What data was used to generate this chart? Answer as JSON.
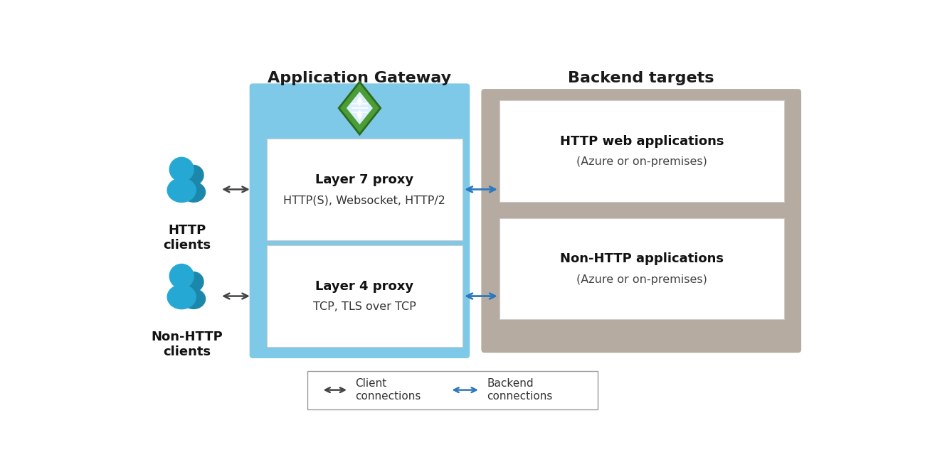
{
  "title_gateway": "Application Gateway",
  "title_backend": "Backend targets",
  "layer7_title": "Layer 7 proxy",
  "layer7_sub": "HTTP(S), Websocket, HTTP/2",
  "layer4_title": "Layer 4 proxy",
  "layer4_sub": "TCP, TLS over TCP",
  "http_web_title": "HTTP web applications",
  "http_web_sub": "(Azure or on-premises)",
  "non_http_title": "Non-HTTP applications",
  "non_http_sub": "(Azure or on-premises)",
  "http_clients_label": "HTTP\nclients",
  "non_http_clients_label": "Non-HTTP\nclients",
  "legend_client": "Client\nconnections",
  "legend_backend": "Backend\nconnections",
  "bg_color": "#ffffff",
  "gateway_box_color": "#7ec8e8",
  "backend_box_color": "#b5aba0",
  "inner_box_color": "#ffffff",
  "inner_box_edge": "#cccccc",
  "legend_box_color": "#ffffff",
  "legend_box_edge": "#999999",
  "black_arrow_color": "#444444",
  "blue_arrow_color": "#2c78c0",
  "icon_color_front": "#25a9d4",
  "icon_color_back": "#1b88ab",
  "diamond_green": "#4a9e35",
  "diamond_green_dark": "#2d6b20",
  "diamond_white": "#ffffff",
  "title_fontsize": 16,
  "label_fontsize": 13,
  "sub_fontsize": 11.5,
  "client_fontsize": 13,
  "legend_fontsize": 11
}
